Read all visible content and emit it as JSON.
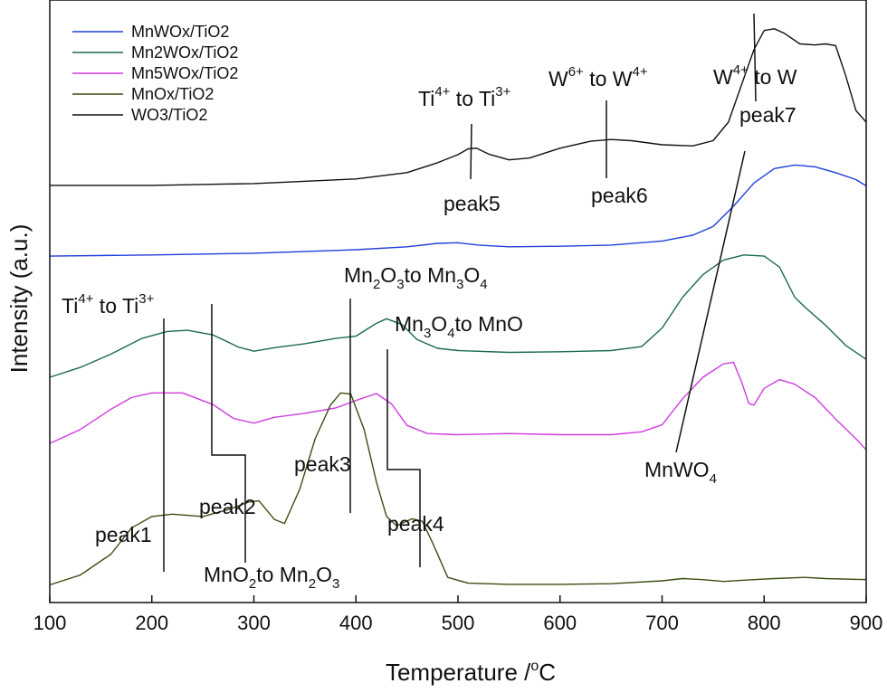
{
  "chart_data": {
    "type": "line",
    "xlabel": "Temperature /°C",
    "ylabel": "Intensity (a.u.)",
    "xlim": [
      100,
      900
    ],
    "xticks": [
      100,
      200,
      300,
      400,
      500,
      600,
      700,
      800,
      900
    ],
    "ylim": [
      0,
      100
    ],
    "grid": false,
    "legend_position": "top-left",
    "series": [
      {
        "name": "MnWOx/TiO2",
        "color": "#1f3fd8",
        "points": [
          [
            100,
            57.4
          ],
          [
            200,
            57.6
          ],
          [
            300,
            57.9
          ],
          [
            400,
            58.5
          ],
          [
            450,
            59.0
          ],
          [
            480,
            59.6
          ],
          [
            500,
            59.7
          ],
          [
            520,
            59.3
          ],
          [
            550,
            59.0
          ],
          [
            600,
            59.1
          ],
          [
            650,
            59.3
          ],
          [
            700,
            60.0
          ],
          [
            730,
            61.0
          ],
          [
            750,
            62.5
          ],
          [
            770,
            66.0
          ],
          [
            790,
            70.0
          ],
          [
            810,
            72.5
          ],
          [
            830,
            73.1
          ],
          [
            850,
            72.8
          ],
          [
            870,
            71.8
          ],
          [
            890,
            70.6
          ],
          [
            900,
            69.5
          ]
        ]
      },
      {
        "name": "Mn2WOx/TiO2",
        "color": "#1b6a4e",
        "points": [
          [
            100,
            36.5
          ],
          [
            130,
            38.2
          ],
          [
            160,
            40.5
          ],
          [
            190,
            43.2
          ],
          [
            215,
            44.4
          ],
          [
            235,
            44.6
          ],
          [
            260,
            43.8
          ],
          [
            285,
            41.7
          ],
          [
            300,
            41.0
          ],
          [
            320,
            41.6
          ],
          [
            350,
            42.3
          ],
          [
            380,
            43.2
          ],
          [
            400,
            43.6
          ],
          [
            420,
            45.8
          ],
          [
            430,
            46.6
          ],
          [
            445,
            45.6
          ],
          [
            460,
            43.0
          ],
          [
            480,
            41.5
          ],
          [
            500,
            41.1
          ],
          [
            550,
            40.8
          ],
          [
            600,
            40.9
          ],
          [
            650,
            41.1
          ],
          [
            680,
            41.8
          ],
          [
            700,
            45.0
          ],
          [
            720,
            50.3
          ],
          [
            740,
            54.2
          ],
          [
            760,
            56.7
          ],
          [
            780,
            57.6
          ],
          [
            800,
            57.4
          ],
          [
            815,
            55.5
          ],
          [
            830,
            50.3
          ],
          [
            840,
            48.6
          ],
          [
            860,
            45.5
          ],
          [
            880,
            42.0
          ],
          [
            900,
            39.6
          ]
        ]
      },
      {
        "name": "Mn5WOx/TiO2",
        "color": "#cf3be0",
        "points": [
          [
            100,
            25.1
          ],
          [
            130,
            27.5
          ],
          [
            160,
            31.0
          ],
          [
            180,
            33.0
          ],
          [
            200,
            33.8
          ],
          [
            230,
            33.8
          ],
          [
            260,
            31.8
          ],
          [
            280,
            29.4
          ],
          [
            300,
            28.6
          ],
          [
            320,
            29.6
          ],
          [
            350,
            30.3
          ],
          [
            380,
            31.2
          ],
          [
            400,
            32.5
          ],
          [
            420,
            33.7
          ],
          [
            435,
            31.9
          ],
          [
            450,
            28.2
          ],
          [
            470,
            26.8
          ],
          [
            500,
            26.6
          ],
          [
            550,
            26.8
          ],
          [
            600,
            26.6
          ],
          [
            650,
            26.6
          ],
          [
            680,
            27.1
          ],
          [
            700,
            28.3
          ],
          [
            720,
            32.8
          ],
          [
            740,
            36.5
          ],
          [
            760,
            38.8
          ],
          [
            770,
            39.1
          ],
          [
            778,
            35.7
          ],
          [
            785,
            32.0
          ],
          [
            790,
            31.7
          ],
          [
            800,
            34.6
          ],
          [
            815,
            36.1
          ],
          [
            830,
            35.3
          ],
          [
            850,
            33.0
          ],
          [
            870,
            29.3
          ],
          [
            890,
            25.9
          ],
          [
            900,
            24.0
          ]
        ]
      },
      {
        "name": "MnOx/TiO2",
        "color": "#3a4f11",
        "points": [
          [
            100,
            0.7
          ],
          [
            130,
            2.4
          ],
          [
            160,
            6.0
          ],
          [
            180,
            10.5
          ],
          [
            200,
            12.5
          ],
          [
            220,
            12.9
          ],
          [
            250,
            12.5
          ],
          [
            275,
            13.7
          ],
          [
            295,
            15.0
          ],
          [
            305,
            15.2
          ],
          [
            320,
            12.0
          ],
          [
            330,
            11.3
          ],
          [
            345,
            17.2
          ],
          [
            360,
            25.9
          ],
          [
            375,
            31.7
          ],
          [
            385,
            33.8
          ],
          [
            395,
            33.6
          ],
          [
            408,
            27.5
          ],
          [
            420,
            18.5
          ],
          [
            430,
            12.5
          ],
          [
            440,
            10.9
          ],
          [
            455,
            12.1
          ],
          [
            465,
            11.7
          ],
          [
            475,
            8.0
          ],
          [
            490,
            2.0
          ],
          [
            510,
            1.0
          ],
          [
            550,
            0.8
          ],
          [
            600,
            0.8
          ],
          [
            650,
            0.9
          ],
          [
            700,
            1.4
          ],
          [
            720,
            1.8
          ],
          [
            740,
            1.6
          ],
          [
            760,
            1.3
          ],
          [
            790,
            1.6
          ],
          [
            810,
            1.8
          ],
          [
            840,
            2.0
          ],
          [
            860,
            1.8
          ],
          [
            900,
            1.6
          ]
        ]
      },
      {
        "name": "WO3/TiO2",
        "color": "#111111",
        "points": [
          [
            100,
            69.6
          ],
          [
            200,
            69.6
          ],
          [
            300,
            69.9
          ],
          [
            400,
            70.7
          ],
          [
            450,
            71.8
          ],
          [
            480,
            73.5
          ],
          [
            500,
            74.9
          ],
          [
            510,
            75.9
          ],
          [
            518,
            76.0
          ],
          [
            530,
            75.0
          ],
          [
            550,
            74.0
          ],
          [
            570,
            74.3
          ],
          [
            600,
            76.0
          ],
          [
            630,
            77.2
          ],
          [
            650,
            77.5
          ],
          [
            670,
            77.3
          ],
          [
            700,
            76.6
          ],
          [
            730,
            76.4
          ],
          [
            750,
            77.3
          ],
          [
            765,
            80.5
          ],
          [
            780,
            88.0
          ],
          [
            790,
            93.0
          ],
          [
            800,
            96.3
          ],
          [
            810,
            96.6
          ],
          [
            820,
            95.8
          ],
          [
            835,
            94.0
          ],
          [
            850,
            93.8
          ],
          [
            860,
            94.0
          ],
          [
            870,
            93.7
          ],
          [
            880,
            88.5
          ],
          [
            890,
            82.5
          ],
          [
            900,
            80.5
          ]
        ]
      }
    ],
    "annotations": {
      "peak_labels": [
        "peak1",
        "peak2",
        "peak3",
        "peak4",
        "peak5",
        "peak6",
        "peak7"
      ],
      "low_ti": {
        "base": "Ti",
        "sup1": "4+",
        "mid": " to Ti",
        "sup2": "3+"
      },
      "high_ti": {
        "base": "Ti",
        "sup1": "4+",
        "mid": " to Ti",
        "sup2": "3+"
      },
      "w6": {
        "base": "W",
        "sup1": "6+",
        "mid": " to W",
        "sup2": "4+"
      },
      "w4": {
        "base": "W",
        "sup1": "4+",
        "mid": " to W"
      },
      "mno2": {
        "a": "MnO",
        "a_sub": "2",
        "mid": "to Mn",
        "b_sub1": "2",
        "b": "O",
        "b_sub2": "3"
      },
      "mn2o3": {
        "a": "Mn",
        "a_sub1": "2",
        "a2": "O",
        "a_sub2": "3",
        "mid": "to Mn",
        "b_sub1": "3",
        "b": "O",
        "b_sub2": "4"
      },
      "mn3o4": {
        "a": "Mn",
        "a_sub1": "3",
        "a2": "O",
        "a_sub2": "4",
        "mid": "to MnO"
      },
      "mnwo4": {
        "a": "MnWO",
        "a_sub": "4"
      }
    }
  }
}
